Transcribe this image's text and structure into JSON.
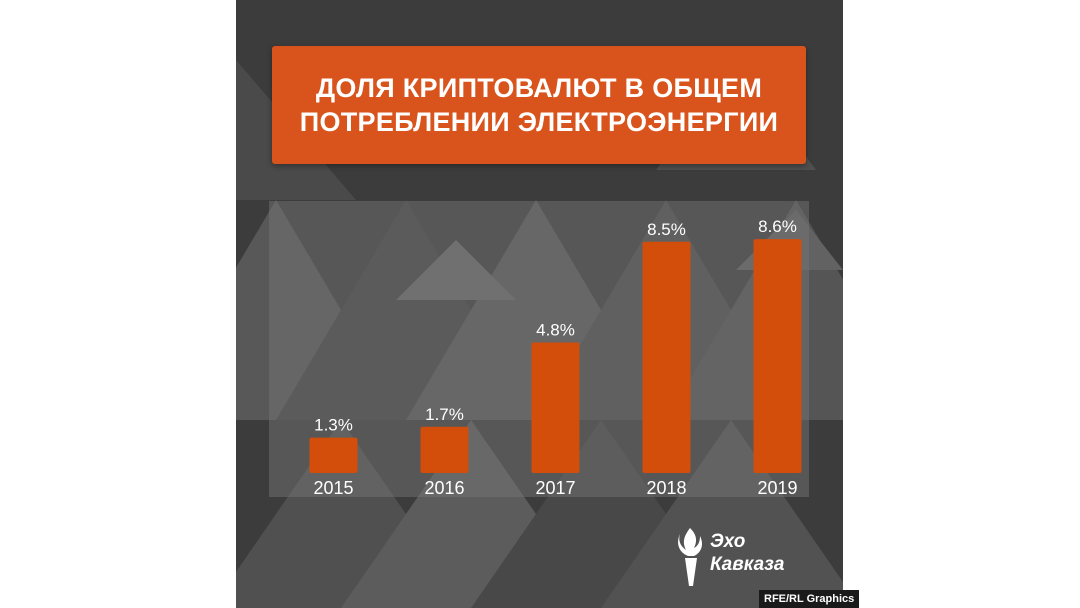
{
  "title_lines": [
    "ДОЛЯ КРИПТОВАЛЮТ В ОБЩЕМ",
    "ПОТРЕБЛЕНИИ ЭЛЕКТРОЭНЕРГИИ"
  ],
  "logo": {
    "line1": "Эхо",
    "line2": "Кавказа",
    "icon": "torch-icon"
  },
  "credit": "RFE/RL Graphics",
  "colors": {
    "bar": "#d24e0a",
    "title_bg": "#d9531c",
    "panel_bg": "#3c3c3c",
    "text": "#ffffff"
  },
  "chart_data": {
    "type": "bar",
    "categories": [
      "2015",
      "2016",
      "2017",
      "2018",
      "2019"
    ],
    "values": [
      1.3,
      1.7,
      4.8,
      8.5,
      8.6
    ],
    "labels": [
      "1.3%",
      "1.7%",
      "4.8%",
      "8.5%",
      "8.6%"
    ],
    "unit": "%",
    "ylim": [
      0,
      10
    ],
    "grid": false,
    "legend": "none"
  }
}
